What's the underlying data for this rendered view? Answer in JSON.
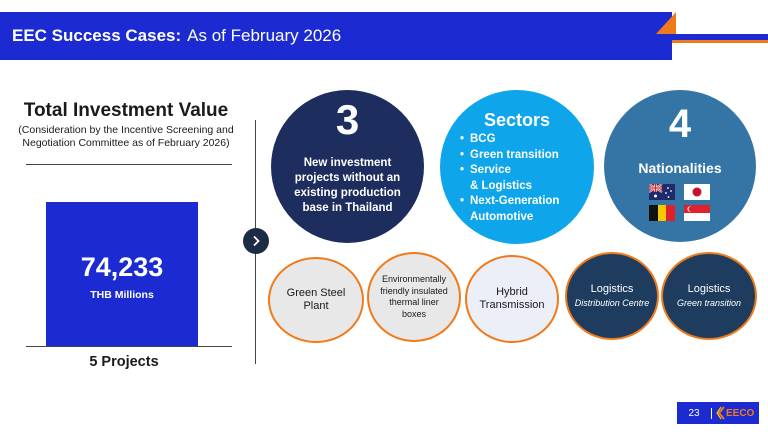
{
  "header": {
    "title_bold": "EEC Success Cases:",
    "title_rest": "As of February 2026"
  },
  "investment": {
    "title": "Total Investment Value",
    "subtitle": "(Consideration by the Incentive Screening and Negotiation Committee as of February 2026)",
    "value": "74,233",
    "unit": "THB Millions",
    "projects": "5 Projects"
  },
  "new_projects": {
    "number": "3",
    "description": "New investment projects without an existing production base in Thailand"
  },
  "sectors": {
    "title": "Sectors",
    "items": [
      {
        "bullet": "•",
        "text": "BCG"
      },
      {
        "bullet": "•",
        "text": "Green transition"
      },
      {
        "bullet": "•",
        "text": "Service"
      },
      {
        "bullet": "",
        "text": "& Logistics"
      },
      {
        "bullet": "•",
        "text": "Next-Generation"
      },
      {
        "bullet": "",
        "text": "Automotive"
      }
    ]
  },
  "nationalities": {
    "number": "4",
    "label": "Nationalities",
    "flags": [
      "australia-flag",
      "japan-flag",
      "belgium-flag",
      "singapore-flag"
    ]
  },
  "projects": [
    {
      "line1": "Green Steel",
      "line2": "Plant"
    },
    {
      "line1": "Environmentally",
      "line2": "friendly insulated",
      "line3": "thermal liner",
      "line4": "boxes"
    },
    {
      "line1": "Hybrid",
      "line2": "Transmission"
    },
    {
      "line1": "Logistics",
      "line2": "Distribution Centre"
    },
    {
      "line1": "Logistics",
      "line2": "Green transition"
    }
  ],
  "footer": {
    "page_number": "23",
    "logo_text": "EECO"
  },
  "colors": {
    "primary_blue": "#1c2bd1",
    "accent_orange": "#f07a1a",
    "navy": "#1d2e5e",
    "sky": "#0ea5ea",
    "steel": "#3575a5",
    "dark_teal": "#1e3d5e"
  }
}
